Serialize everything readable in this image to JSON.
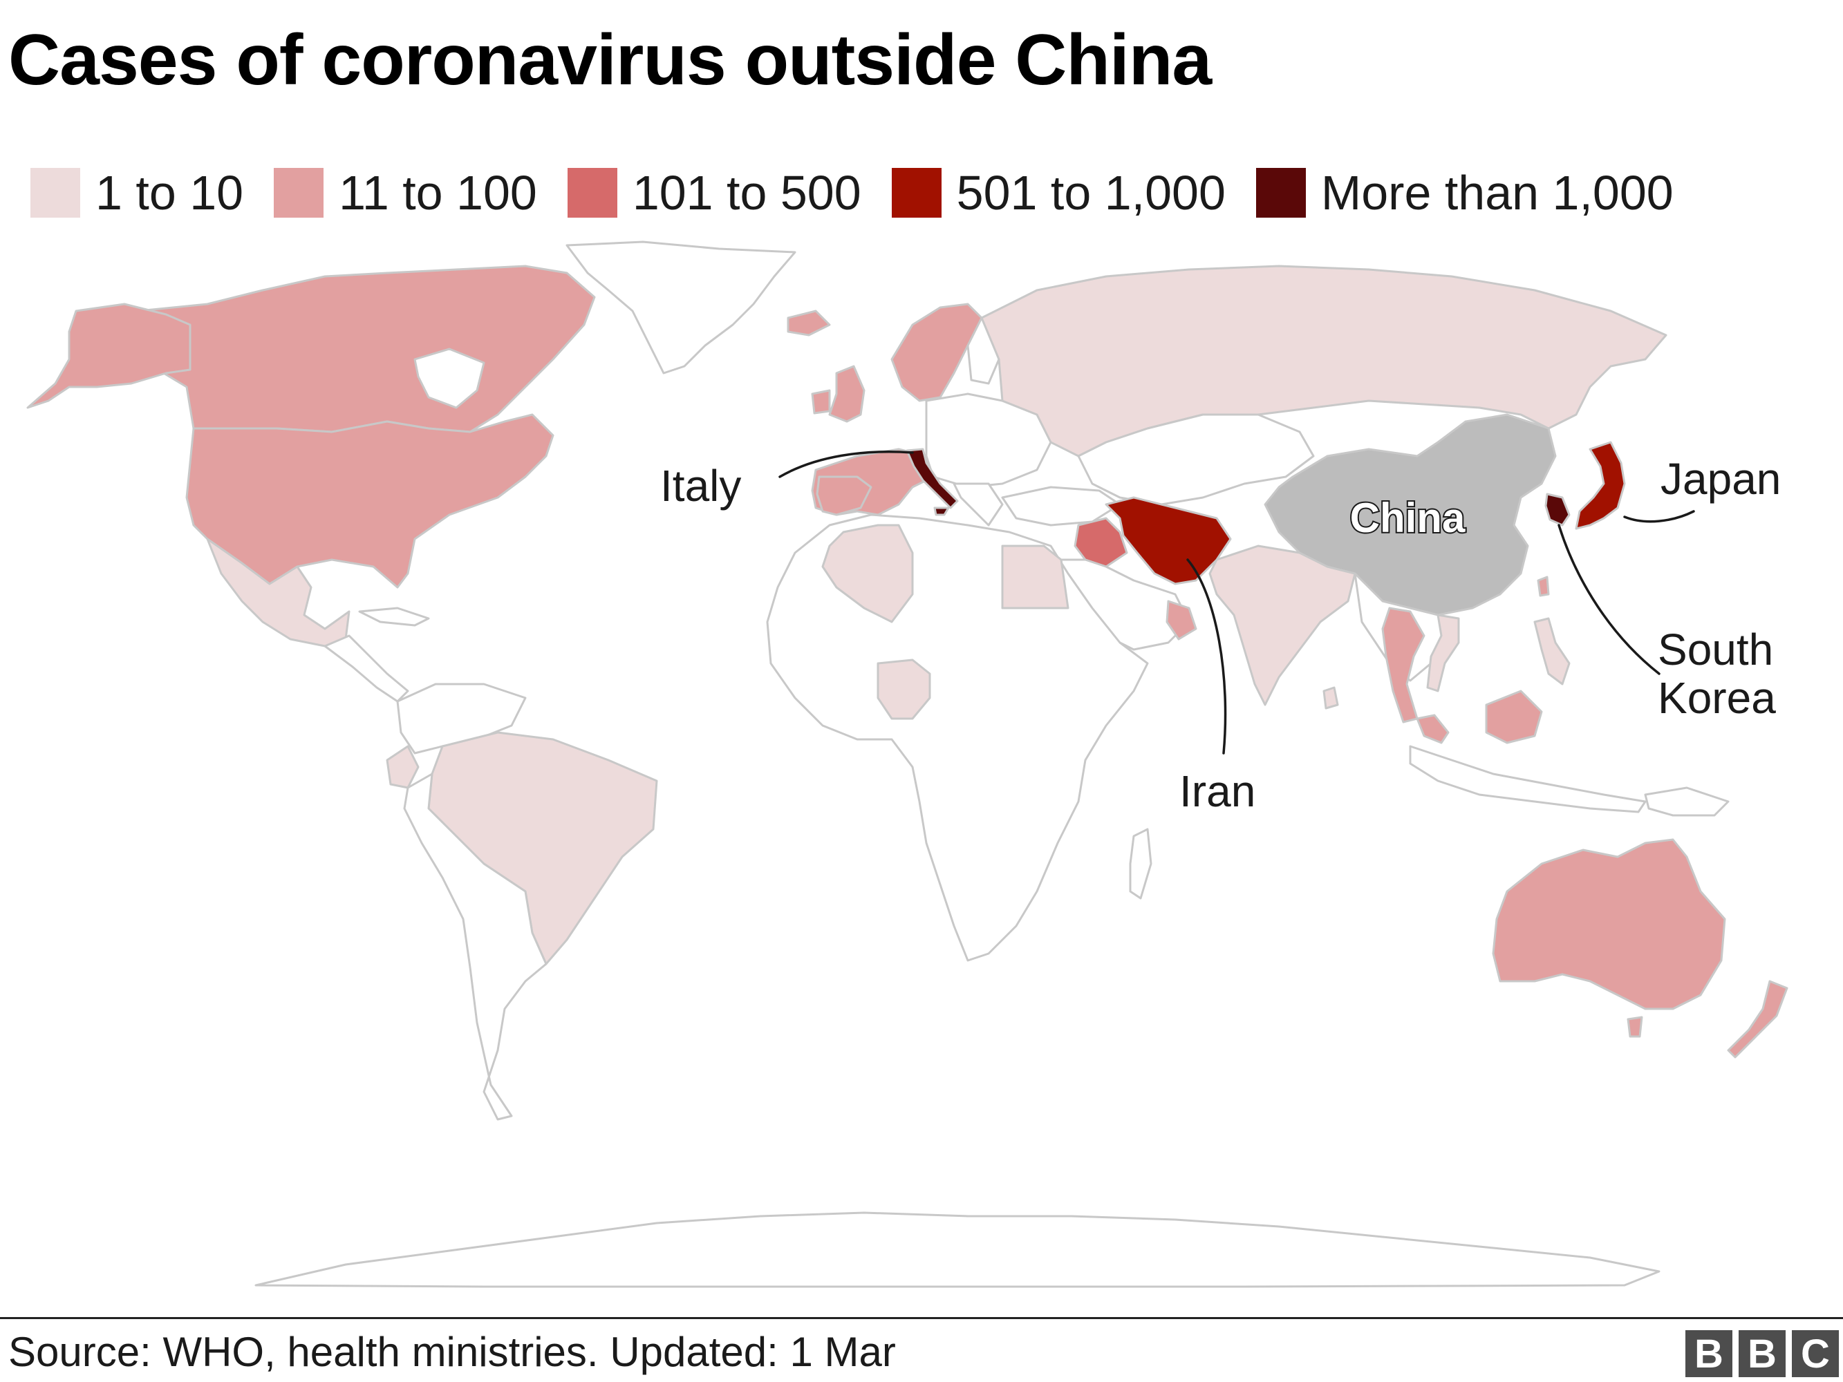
{
  "title": "Cases of coronavirus outside China",
  "legend": [
    {
      "label": "1 to 10",
      "color": "#eddbdb"
    },
    {
      "label": "11 to 100",
      "color": "#e2a0a0"
    },
    {
      "label": "101 to 500",
      "color": "#d66a6a"
    },
    {
      "label": "501 to 1,000",
      "color": "#a11100"
    },
    {
      "label": "More than 1,000",
      "color": "#5a0808"
    }
  ],
  "colors": {
    "no_cases": "#ffffff",
    "border": "#c8c8c8",
    "china": "#bcbcbc",
    "callout_line": "#1a1a1a"
  },
  "map": {
    "highlight_label": "China",
    "callouts": [
      {
        "id": "italy",
        "label": "Italy",
        "category": "More than 1,000"
      },
      {
        "id": "iran",
        "label": "Iran",
        "category": "501 to 1,000"
      },
      {
        "id": "japan",
        "label": "Japan",
        "category": "501 to 1,000"
      },
      {
        "id": "south-korea",
        "label": "South Korea",
        "category": "More than 1,000"
      }
    ]
  },
  "footer": {
    "source": "Source: WHO, health ministries. Updated: 1 Mar",
    "logo": [
      "B",
      "B",
      "C"
    ]
  }
}
